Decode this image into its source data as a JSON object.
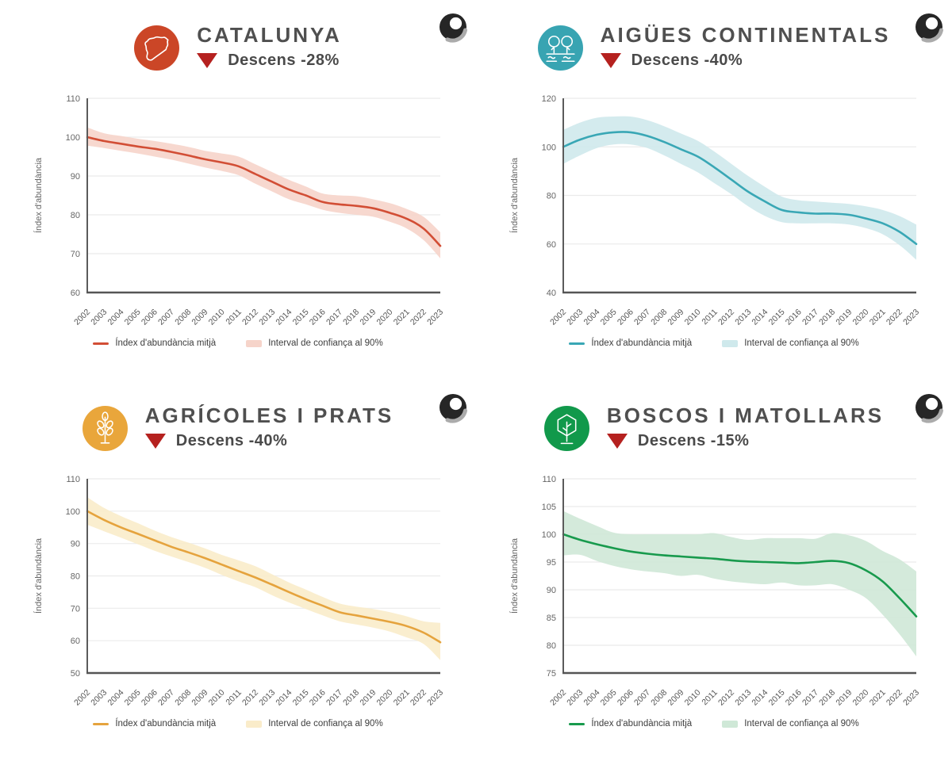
{
  "page": {
    "background": "#ffffff",
    "ylabel": "Índex d'abundància"
  },
  "legend_labels": {
    "line": "Índex d'abundància mitjà",
    "band": "Interval de confiança al 90%"
  },
  "years": [
    2002,
    2003,
    2004,
    2005,
    2006,
    2007,
    2008,
    2009,
    2010,
    2011,
    2012,
    2013,
    2014,
    2015,
    2016,
    2017,
    2018,
    2019,
    2020,
    2021,
    2022,
    2023
  ],
  "panels": [
    {
      "id": "catalunya",
      "title": "CATALUNYA",
      "trend_label": "Descens -28%",
      "icon": "catalonia-map-icon",
      "colors": {
        "icon_bg": "#cb4627",
        "line": "#d24e35",
        "band": "#f6d4ca",
        "triangle": "#b5211f"
      }
    },
    {
      "id": "aigues-continentals",
      "title": "AIGÜES CONTINENTALS",
      "trend_label": "Descens -40%",
      "icon": "trees-over-water-icon",
      "colors": {
        "icon_bg": "#38a4b2",
        "line": "#39a7b5",
        "band": "#cfe9ec",
        "triangle": "#b5211f"
      }
    },
    {
      "id": "agricoles-i-prats",
      "title": "AGRÍCOLES I PRATS",
      "trend_label": "Descens -40%",
      "icon": "wheat-stalk-icon",
      "colors": {
        "icon_bg": "#e9a63b",
        "line": "#e5a33d",
        "band": "#faecca",
        "triangle": "#b5211f"
      }
    },
    {
      "id": "boscos-i-matollars",
      "title": "BOSCOS I MATOLLARS",
      "trend_label": "Descens -15%",
      "icon": "hexagon-tree-icon",
      "colors": {
        "icon_bg": "#11994b",
        "line": "#189a4d",
        "band": "#cfe8d7",
        "triangle": "#b5211f"
      }
    }
  ],
  "chart_data": [
    {
      "type": "line",
      "title": "CATALUNYA",
      "xlabel": "",
      "ylabel": "Índex d'abundància",
      "x": [
        2002,
        2003,
        2004,
        2005,
        2006,
        2007,
        2008,
        2009,
        2010,
        2011,
        2012,
        2013,
        2014,
        2015,
        2016,
        2017,
        2018,
        2019,
        2020,
        2021,
        2022,
        2023
      ],
      "ylim": [
        60,
        110
      ],
      "ytick_step": 10,
      "grid": true,
      "legend_position": "bottom",
      "series": [
        {
          "name": "Índex d'abundància mitjà",
          "values": [
            100,
            99,
            98.3,
            97.6,
            97,
            96.2,
            95.3,
            94.3,
            93.5,
            92.5,
            90.5,
            88.5,
            86.5,
            85,
            83.3,
            82.7,
            82.3,
            81.7,
            80.5,
            79,
            76.5,
            72
          ]
        },
        {
          "name": "Interval de confiança al 90% (límit superior)",
          "values": [
            102.5,
            101,
            100.3,
            99.6,
            99,
            98.3,
            97.5,
            96.5,
            95.8,
            95,
            93,
            91,
            89,
            87.3,
            85.5,
            85,
            84.8,
            84,
            83,
            81.5,
            79.5,
            75.5
          ]
        },
        {
          "name": "Interval de confiança al 90% (límit inferior)",
          "values": [
            97.8,
            97.2,
            96.5,
            95.8,
            95,
            94.2,
            93.2,
            92.2,
            91.3,
            90.2,
            88,
            86,
            84,
            82.7,
            81.3,
            80.5,
            80,
            79.5,
            78.2,
            76.5,
            73.5,
            68.8
          ]
        }
      ]
    },
    {
      "type": "line",
      "title": "AIGÜES CONTINENTALS",
      "xlabel": "",
      "ylabel": "Índex d'abundància",
      "x": [
        2002,
        2003,
        2004,
        2005,
        2006,
        2007,
        2008,
        2009,
        2010,
        2011,
        2012,
        2013,
        2014,
        2015,
        2016,
        2017,
        2018,
        2019,
        2020,
        2021,
        2022,
        2023
      ],
      "ylim": [
        40,
        120
      ],
      "ytick_step": 20,
      "grid": true,
      "legend_position": "bottom",
      "series": [
        {
          "name": "Índex d'abundància mitjà",
          "values": [
            100,
            103,
            105,
            106,
            106,
            104.5,
            102,
            99,
            96,
            91.5,
            86.5,
            81.5,
            77.5,
            74,
            73,
            72.5,
            72.5,
            72,
            70.5,
            68.5,
            65,
            60
          ]
        },
        {
          "name": "Interval de confiança al 90% (límit superior)",
          "values": [
            107,
            110,
            112,
            112.5,
            112.5,
            111,
            108.5,
            105.5,
            102.5,
            98,
            93,
            88,
            83.5,
            79.5,
            78,
            77.5,
            77,
            76.5,
            75.5,
            74,
            71.5,
            68
          ]
        },
        {
          "name": "Interval de confiança al 90% (límit inferior)",
          "values": [
            93,
            96.5,
            99.5,
            101,
            101,
            99.5,
            96.5,
            93,
            89.5,
            85,
            80.5,
            75.5,
            71.5,
            69,
            68.5,
            68.5,
            68.5,
            68,
            66.5,
            64,
            59.5,
            53.5
          ]
        }
      ]
    },
    {
      "type": "line",
      "title": "AGRÍCOLES I PRATS",
      "xlabel": "",
      "ylabel": "Índex d'abundància",
      "x": [
        2002,
        2003,
        2004,
        2005,
        2006,
        2007,
        2008,
        2009,
        2010,
        2011,
        2012,
        2013,
        2014,
        2015,
        2016,
        2017,
        2018,
        2019,
        2020,
        2021,
        2022,
        2023
      ],
      "ylim": [
        50,
        110
      ],
      "ytick_step": 10,
      "grid": true,
      "legend_position": "bottom",
      "series": [
        {
          "name": "Índex d'abundància mitjà",
          "values": [
            100,
            97.3,
            95,
            93,
            91,
            89,
            87.3,
            85.5,
            83.5,
            81.5,
            79.5,
            77.3,
            75,
            72.8,
            70.8,
            68.8,
            67.8,
            66.8,
            65.8,
            64.5,
            62.5,
            59.5
          ]
        },
        {
          "name": "Interval de confiança al 90% (límit superior)",
          "values": [
            104.3,
            101,
            98.5,
            96.3,
            94,
            92,
            90.3,
            88.5,
            86.5,
            84.8,
            83,
            80.5,
            78,
            75.8,
            73.5,
            71.5,
            70.5,
            69.8,
            68.8,
            67.5,
            66,
            65.5
          ]
        },
        {
          "name": "Interval de confiança al 90% (límit inferior)",
          "values": [
            95.8,
            93.8,
            91.8,
            89.8,
            87.8,
            86,
            84.3,
            82.5,
            80.3,
            78.3,
            76.5,
            74,
            71.8,
            69.8,
            67.8,
            66,
            65,
            64,
            62.8,
            61,
            59,
            54
          ]
        }
      ]
    },
    {
      "type": "line",
      "title": "BOSCOS I MATOLLARS",
      "xlabel": "",
      "ylabel": "Índex d'abundància",
      "x": [
        2002,
        2003,
        2004,
        2005,
        2006,
        2007,
        2008,
        2009,
        2010,
        2011,
        2012,
        2013,
        2014,
        2015,
        2016,
        2017,
        2018,
        2019,
        2020,
        2021,
        2022,
        2023
      ],
      "ylim": [
        75,
        110
      ],
      "ytick_step": 5,
      "grid": true,
      "legend_position": "bottom",
      "series": [
        {
          "name": "Índex d'abundància mitjà",
          "values": [
            100,
            99,
            98.2,
            97.5,
            96.9,
            96.5,
            96.2,
            96,
            95.8,
            95.6,
            95.3,
            95.1,
            95,
            94.9,
            94.8,
            95,
            95.2,
            94.8,
            93.5,
            91.5,
            88.5,
            85.2
          ]
        },
        {
          "name": "Interval de confiança al 90% (límit superior)",
          "values": [
            104.2,
            102.8,
            101.5,
            100.3,
            100,
            100,
            100,
            100,
            100,
            100.2,
            99.5,
            99,
            99.3,
            99.3,
            99.3,
            99.2,
            100.2,
            99.8,
            98.8,
            97,
            95.5,
            93.3
          ]
        },
        {
          "name": "Interval de confiança al 90% (límit inferior)",
          "values": [
            96.2,
            96.3,
            95.2,
            94.3,
            93.7,
            93.3,
            93,
            92.5,
            92.7,
            92,
            91.5,
            91.2,
            91,
            91.3,
            90.8,
            90.8,
            91,
            90,
            88.5,
            85.5,
            82,
            78
          ]
        }
      ]
    }
  ]
}
